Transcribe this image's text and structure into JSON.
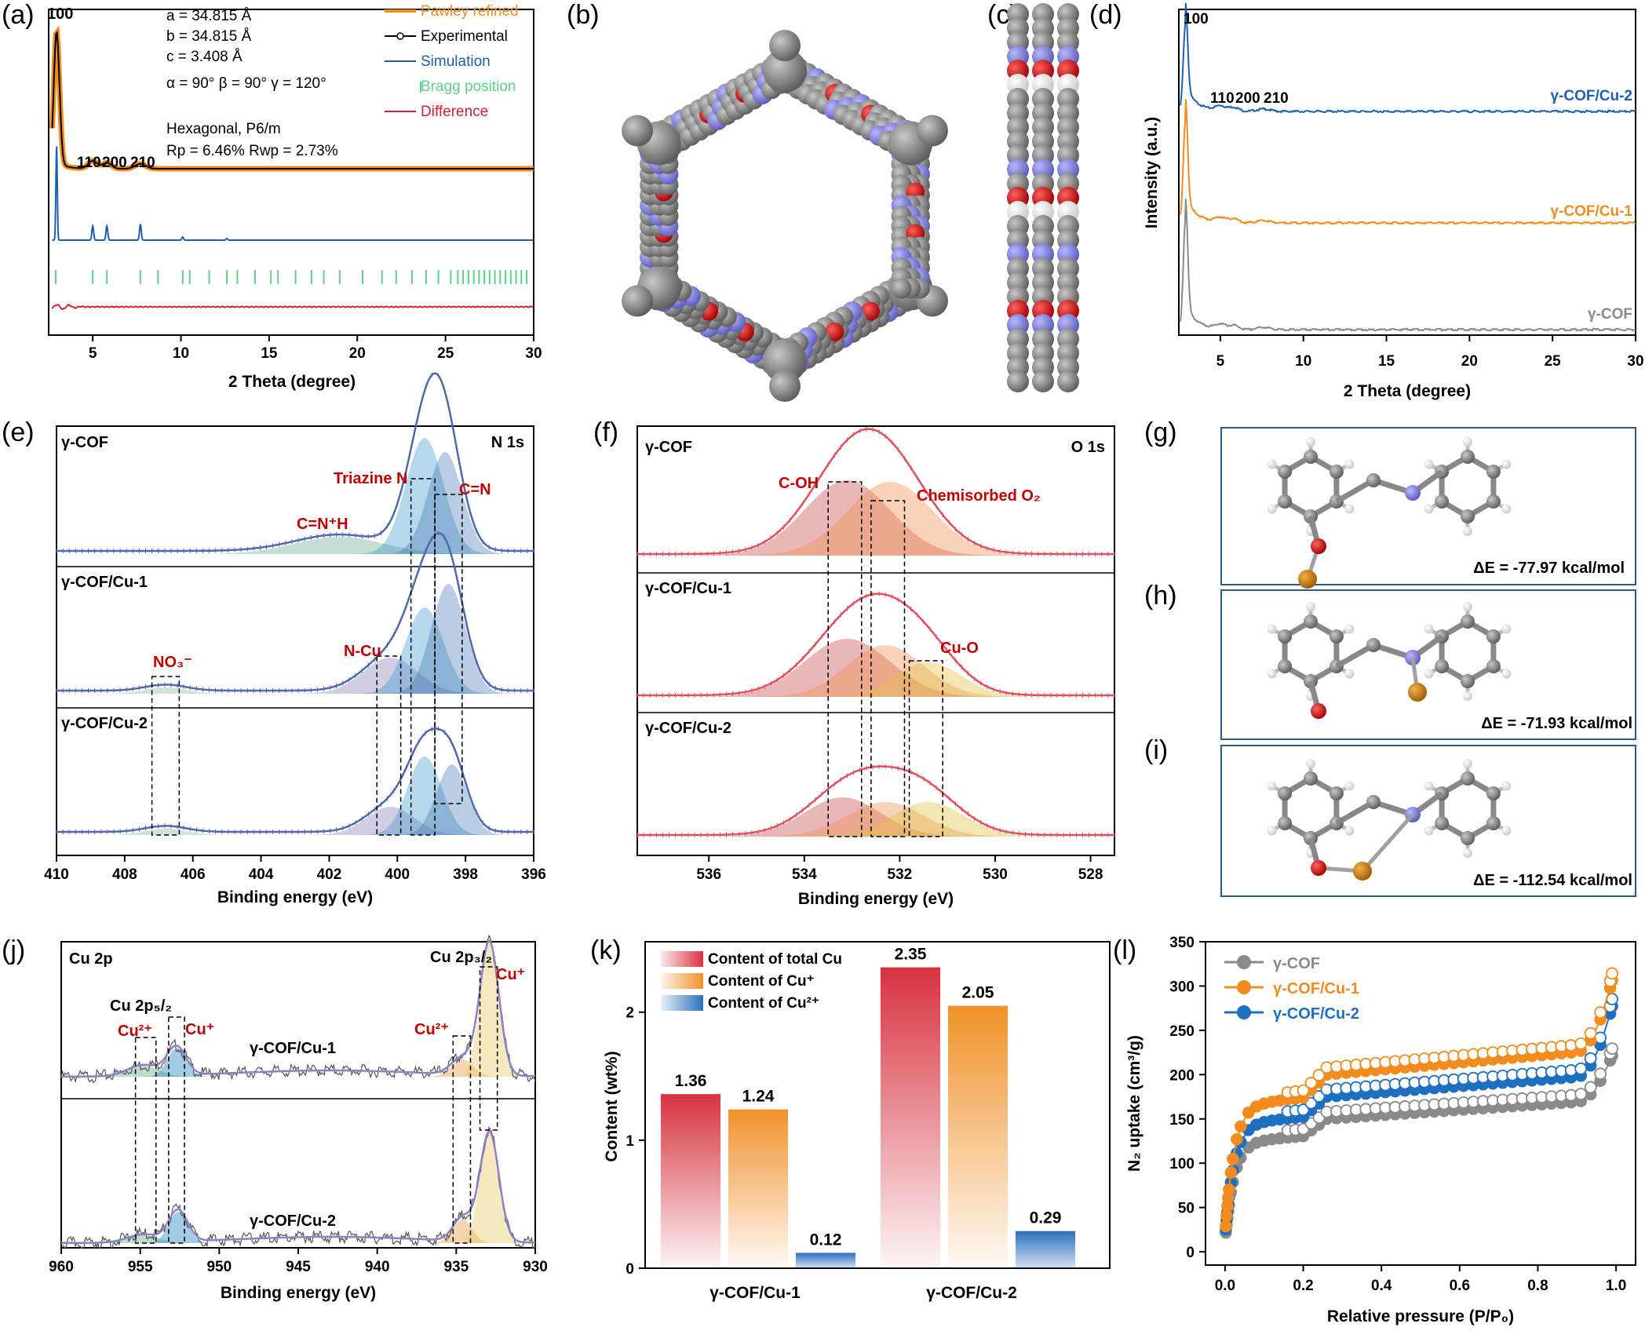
{
  "panels": {
    "a": {
      "label": "(a)",
      "peak_labels": [
        "100",
        "110",
        "200",
        "210"
      ],
      "cell": [
        "a = 34.815 Å",
        "b = 34.815 Å",
        "c = 3.408 Å",
        "α = 90° β = 90° γ = 120°"
      ],
      "space_group": "Hexagonal, P6/m",
      "r_values": "Rp = 6.46% Rwp = 2.73%",
      "legend": [
        {
          "name": "Pawley refined",
          "color": "#f28c1e"
        },
        {
          "name": "Experimental",
          "color": "#000000"
        },
        {
          "name": "Simulation",
          "color": "#1f5fb0"
        },
        {
          "name": "Bragg position",
          "color": "#5fd08a"
        },
        {
          "name": "Difference",
          "color": "#d0203a"
        }
      ]
    },
    "b": {
      "label": "(b)"
    },
    "c": {
      "label": "(c)"
    },
    "d": {
      "label": "(d)",
      "series": [
        "γ-COF/Cu-2",
        "γ-COF/Cu-1",
        "γ-COF"
      ],
      "peak_labels": [
        "100",
        "110",
        "200",
        "210"
      ]
    },
    "e": {
      "label": "(e)",
      "title": "N 1s",
      "samples": [
        "γ-COF",
        "γ-COF/Cu-1",
        "γ-COF/Cu-2"
      ],
      "annotations": [
        "Triazine N",
        "C=N",
        "C=N⁺H",
        "NO₃⁻",
        "N-Cu"
      ]
    },
    "f": {
      "label": "(f)",
      "title": "O 1s",
      "samples": [
        "γ-COF",
        "γ-COF/Cu-1",
        "γ-COF/Cu-2"
      ],
      "annotations": [
        "C-OH",
        "Chemisorbed  O₂",
        "Cu-O"
      ]
    },
    "g": {
      "label": "(g)",
      "energy": "ΔE = -77.97 kcal/mol"
    },
    "h": {
      "label": "(h)",
      "energy": "ΔE = -71.93 kcal/mol"
    },
    "i": {
      "label": "(i)",
      "energy": "ΔE = -112.54 kcal/mol"
    },
    "j": {
      "label": "(j)",
      "title": "Cu 2p",
      "samples": [
        "γ-COF/Cu-1",
        "γ-COF/Cu-2"
      ],
      "annotations": [
        "Cu 2p₅/₂",
        "Cu 2p₃/₂",
        "Cu²⁺",
        "Cu⁺"
      ]
    },
    "k": {
      "label": "(k)"
    },
    "l": {
      "label": "(l)"
    }
  },
  "chart_data": [
    {
      "id": "a",
      "type": "line",
      "xlabel": "2 Theta (degree)",
      "ylabel": "",
      "xlim": [
        2.5,
        30
      ],
      "xticks": [
        5,
        10,
        15,
        20,
        25,
        30
      ],
      "peaks": [
        {
          "x": 2.9,
          "label": "100"
        },
        {
          "x": 5.0,
          "label": "110"
        },
        {
          "x": 5.8,
          "label": "200"
        },
        {
          "x": 7.7,
          "label": "210"
        }
      ],
      "series": [
        {
          "name": "Pawley refined"
        },
        {
          "name": "Experimental"
        },
        {
          "name": "Simulation"
        },
        {
          "name": "Bragg position",
          "x": [
            2.9,
            5.0,
            5.8,
            7.7,
            8.7,
            10.1,
            10.5,
            11.6,
            12.6,
            13.2,
            14.2,
            15.1,
            15.5,
            16.5,
            17.4,
            18.1,
            19.0,
            20.3,
            21.4,
            22.2,
            23.1,
            23.9,
            24.6,
            25.3,
            25.7,
            26.0,
            26.3,
            26.6,
            26.9,
            27.2,
            27.5,
            27.8,
            28.1,
            28.4,
            28.7,
            29.0,
            29.3,
            29.6
          ]
        },
        {
          "name": "Difference"
        }
      ]
    },
    {
      "id": "d",
      "type": "line",
      "xlabel": "2 Theta (degree)",
      "ylabel": "Intensity (a.u.)",
      "xlim": [
        2.5,
        30
      ],
      "xticks": [
        5,
        10,
        15,
        20,
        25,
        30
      ],
      "series": [
        {
          "name": "γ-COF/Cu-2"
        },
        {
          "name": "γ-COF/Cu-1"
        },
        {
          "name": "γ-COF"
        }
      ]
    },
    {
      "id": "e",
      "type": "line",
      "xlabel": "Binding energy (eV)",
      "xlim": [
        410,
        396
      ],
      "xticks": [
        410,
        408,
        406,
        404,
        402,
        400,
        398,
        396
      ],
      "components": [
        {
          "name": "C=N⁺H",
          "x": 401.5
        },
        {
          "name": "Triazine N",
          "x": 399.2
        },
        {
          "name": "C=N",
          "x": 398.6
        },
        {
          "name": "N-Cu",
          "x": 400.2
        },
        {
          "name": "NO₃⁻",
          "x": 406.8
        }
      ]
    },
    {
      "id": "f",
      "type": "line",
      "xlabel": "Binding energy (eV)",
      "xlim": [
        537.5,
        527.5
      ],
      "xticks": [
        536,
        534,
        532,
        530,
        528
      ],
      "components": [
        {
          "name": "C-OH",
          "x": 533.1
        },
        {
          "name": "Chemisorbed O₂",
          "x": 532.3
        },
        {
          "name": "Cu-O",
          "x": 531.4
        }
      ]
    },
    {
      "id": "j",
      "type": "line",
      "xlabel": "Binding energy (eV)",
      "xlim": [
        960,
        930
      ],
      "xticks": [
        960,
        955,
        950,
        945,
        940,
        935,
        930
      ],
      "components": [
        {
          "name": "Cu²⁺ 2p1/2",
          "x": 954.8
        },
        {
          "name": "Cu⁺ 2p1/2",
          "x": 952.6
        },
        {
          "name": "Cu²⁺ 2p3/2",
          "x": 934.6
        },
        {
          "name": "Cu⁺ 2p3/2",
          "x": 932.9
        }
      ]
    },
    {
      "id": "k",
      "type": "bar",
      "ylabel": "Content (wt%)",
      "ylim": [
        0,
        2.55
      ],
      "yticks": [
        0,
        1,
        2
      ],
      "categories": [
        "γ-COF/Cu-1",
        "γ-COF/Cu-2"
      ],
      "series": [
        {
          "name": "Content of total Cu",
          "color": "#d6323f",
          "values": [
            1.36,
            2.35
          ]
        },
        {
          "name": "Content of Cu⁺",
          "color": "#f0922a",
          "values": [
            1.24,
            2.05
          ]
        },
        {
          "name": "Content of Cu²⁺",
          "color": "#2b6fbd",
          "values": [
            0.12,
            0.29
          ]
        }
      ]
    },
    {
      "id": "l",
      "type": "scatter",
      "xlabel": "Relative pressure (P/P₀)",
      "ylabel": "N₂ uptake (cm³/g)",
      "xlim": [
        -0.05,
        1.05
      ],
      "ylim": [
        -15,
        350
      ],
      "xticks": [
        0.0,
        0.2,
        0.4,
        0.6,
        0.8,
        1.0
      ],
      "yticks": [
        0,
        50,
        100,
        150,
        200,
        250,
        300,
        350
      ],
      "series": [
        {
          "name": "γ-COF",
          "color": "#8a8a8a",
          "plateau": 150,
          "end": 222
        },
        {
          "name": "γ-COF/Cu-1",
          "color": "#f28c1e",
          "plateau": 200,
          "end": 307
        },
        {
          "name": "γ-COF/Cu-2",
          "color": "#1f6fc0",
          "plateau": 175,
          "end": 278
        }
      ]
    }
  ]
}
